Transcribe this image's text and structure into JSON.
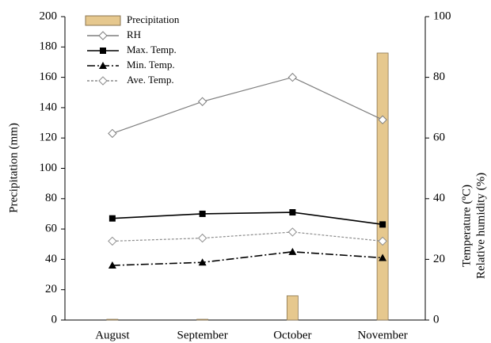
{
  "chart_data": {
    "type": "combo",
    "y_label": "Precipitation (mm)",
    "y2_label": [
      "Temperature (ºC)",
      "Relative humidity (%)"
    ],
    "categories": [
      "August",
      "September",
      "October",
      "November"
    ],
    "ylim": [
      0,
      200
    ],
    "yticks": [
      0,
      20,
      40,
      60,
      80,
      100,
      120,
      140,
      160,
      180,
      200
    ],
    "y2lim": [
      0,
      100
    ],
    "y2ticks": [
      0,
      20,
      40,
      60,
      80,
      100
    ],
    "series": [
      {
        "name": "Precipitation",
        "type": "bar",
        "axis": "y",
        "color": "#e6c88e",
        "values": [
          0.5,
          0.5,
          16,
          176
        ]
      },
      {
        "name": "RH",
        "type": "line",
        "axis": "y2",
        "color": "#7f7f7f",
        "marker": "diamond-open",
        "dash": "solid",
        "values": [
          61.5,
          72,
          80,
          66
        ]
      },
      {
        "name": "Max. Temp.",
        "type": "line",
        "axis": "y2",
        "color": "#000000",
        "marker": "square",
        "dash": "solid",
        "values": [
          33.5,
          35,
          35.5,
          31.5
        ]
      },
      {
        "name": "Min. Temp.",
        "type": "line",
        "axis": "y2",
        "color": "#000000",
        "marker": "triangle",
        "dash": "dash-dot",
        "values": [
          18,
          19,
          22.5,
          20.5
        ]
      },
      {
        "name": "Ave. Temp.",
        "type": "line",
        "axis": "y2",
        "color": "#8c8c8c",
        "marker": "diamond-open",
        "dash": "dotted",
        "values": [
          26,
          27,
          29,
          26
        ]
      }
    ]
  }
}
